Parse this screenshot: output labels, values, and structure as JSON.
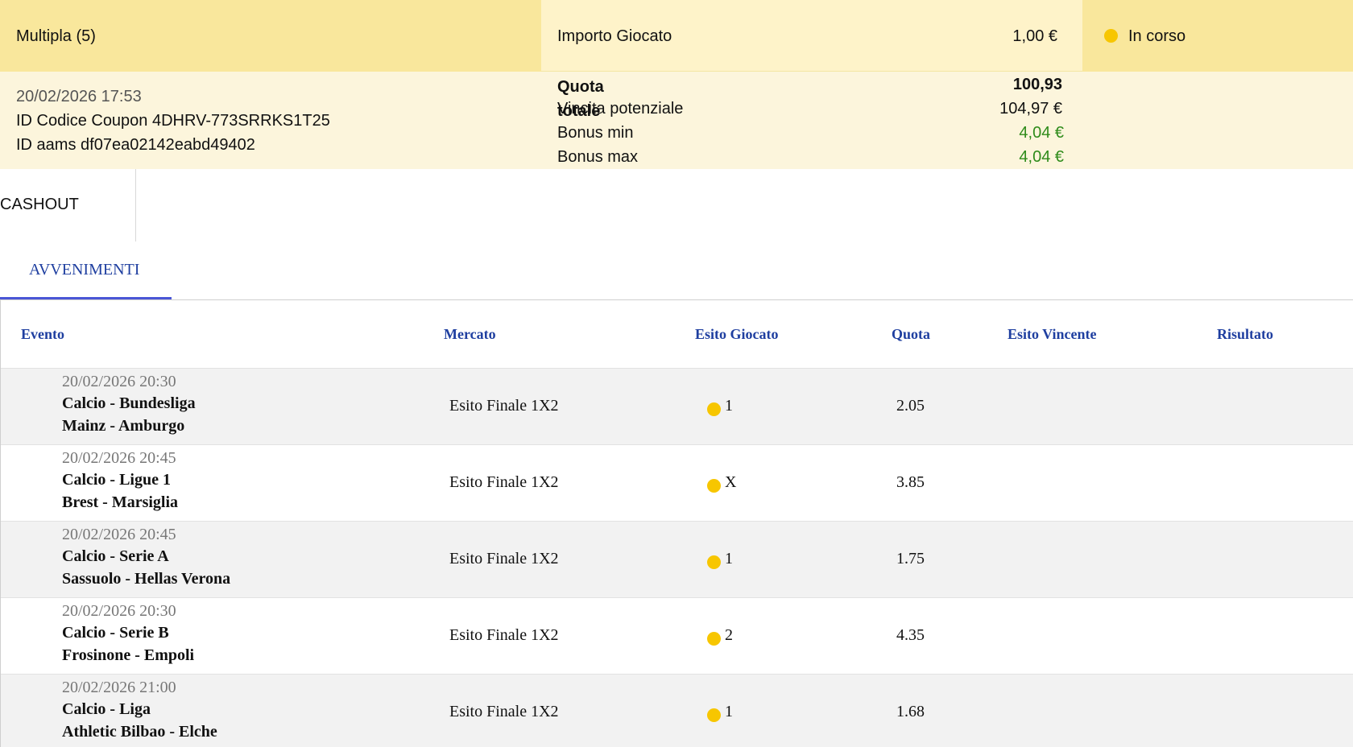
{
  "summary": {
    "bet_type": "Multipla (5)",
    "amount_label": "Importo Giocato",
    "amount_value": "1,00 €",
    "status": "In corso",
    "date": "20/02/2026 17:53",
    "coupon_id": "ID Codice Coupon 4DHRV-773SRRKS1T25",
    "aams_id": "ID aams df07ea02142eabd49402",
    "quota_label": "Quota totale",
    "quota_value": "100,93",
    "potential_win_label": "Vincita potenziale",
    "potential_win_value": "104,97 €",
    "bonus_min_label": "Bonus min",
    "bonus_min_value": "4,04 €",
    "bonus_max_label": "Bonus max",
    "bonus_max_value": "4,04 €"
  },
  "cashout": {
    "label": "CASHOUT"
  },
  "tabs": {
    "active": "AVVENIMENTI"
  },
  "table": {
    "headers": {
      "evento": "Evento",
      "mercato": "Mercato",
      "esito_giocato": "Esito Giocato",
      "quota": "Quota",
      "esito_vincente": "Esito Vincente",
      "risultato": "Risultato"
    },
    "rows": [
      {
        "date": "20/02/2026 20:30",
        "competition": "Calcio - Bundesliga",
        "match": "Mainz - Amburgo",
        "market": "Esito Finale 1X2",
        "outcome": "1",
        "odds": "2.05"
      },
      {
        "date": "20/02/2026 20:45",
        "competition": "Calcio - Ligue 1",
        "match": "Brest - Marsiglia",
        "market": "Esito Finale 1X2",
        "outcome": "X",
        "odds": "3.85"
      },
      {
        "date": "20/02/2026 20:45",
        "competition": "Calcio - Serie A",
        "match": "Sassuolo - Hellas Verona",
        "market": "Esito Finale 1X2",
        "outcome": "1",
        "odds": "1.75"
      },
      {
        "date": "20/02/2026 20:30",
        "competition": "Calcio - Serie B",
        "match": "Frosinone - Empoli",
        "market": "Esito Finale 1X2",
        "outcome": "2",
        "odds": "4.35"
      },
      {
        "date": "20/02/2026 21:00",
        "competition": "Calcio - Liga",
        "match": "Athletic Bilbao - Elche",
        "market": "Esito Finale 1X2",
        "outcome": "1",
        "odds": "1.68"
      }
    ]
  },
  "colors": {
    "status_dot": "#f7c600",
    "header_yellow": "#f9e79c",
    "link_blue": "#1f3fa0",
    "bonus_green": "#2e8b1a"
  }
}
